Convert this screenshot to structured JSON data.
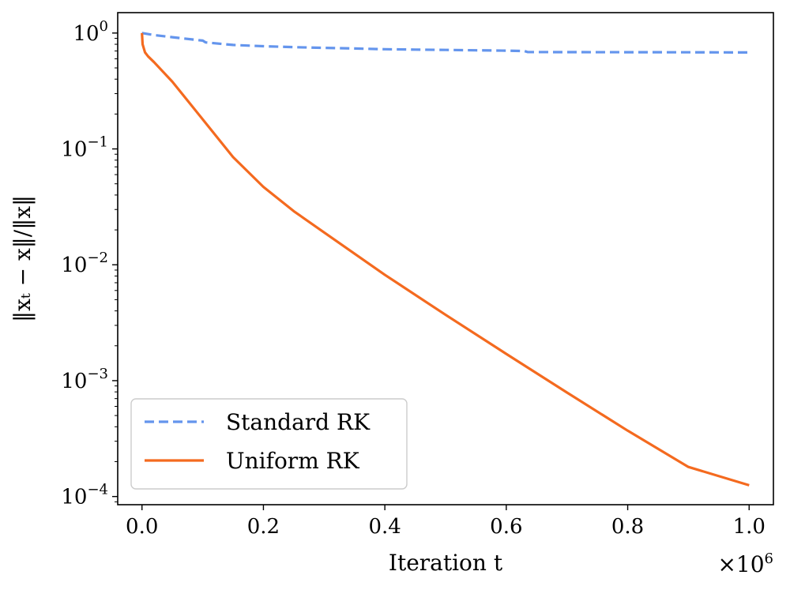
{
  "chart_data": {
    "type": "line",
    "xlabel": "Iteration t",
    "ylabel": "‖xₜ − x‖/‖x‖",
    "x_multiplier": "×10",
    "x_multiplier_exp": "6",
    "xlim": [
      -0.04,
      1.04
    ],
    "ylim": [
      8.5e-05,
      1.5
    ],
    "yscale": "log",
    "grid": false,
    "legend_position": "bottom-left",
    "xticks": [
      {
        "value": 0.0,
        "label": "0.0"
      },
      {
        "value": 0.2,
        "label": "0.2"
      },
      {
        "value": 0.4,
        "label": "0.4"
      },
      {
        "value": 0.6,
        "label": "0.6"
      },
      {
        "value": 0.8,
        "label": "0.8"
      },
      {
        "value": 1.0,
        "label": "1.0"
      }
    ],
    "yticks": [
      {
        "value": 1,
        "base": "10",
        "exp": "0"
      },
      {
        "value": 0.1,
        "base": "10",
        "exp": "−1"
      },
      {
        "value": 0.01,
        "base": "10",
        "exp": "−2"
      },
      {
        "value": 0.001,
        "base": "10",
        "exp": "−3"
      },
      {
        "value": 0.0001,
        "base": "10",
        "exp": "−4"
      }
    ],
    "series": [
      {
        "name": "Standard RK",
        "color": "#6495ED",
        "style": "dashed",
        "x": [
          0.0,
          0.02,
          0.05,
          0.1,
          0.105,
          0.15,
          0.2,
          0.25,
          0.3,
          0.35,
          0.4,
          0.45,
          0.5,
          0.55,
          0.6,
          0.63,
          0.635,
          0.7,
          0.8,
          0.9,
          1.0
        ],
        "y": [
          1.0,
          0.96,
          0.92,
          0.86,
          0.83,
          0.79,
          0.77,
          0.755,
          0.745,
          0.735,
          0.725,
          0.72,
          0.715,
          0.71,
          0.705,
          0.7,
          0.685,
          0.684,
          0.683,
          0.682,
          0.68
        ]
      },
      {
        "name": "Uniform RK",
        "color": "#F46A1F",
        "style": "solid",
        "x": [
          0.0,
          0.001,
          0.005,
          0.01,
          0.02,
          0.05,
          0.1,
          0.15,
          0.2,
          0.25,
          0.3,
          0.4,
          0.5,
          0.6,
          0.7,
          0.8,
          0.9,
          1.0
        ],
        "y": [
          1.0,
          0.8,
          0.68,
          0.63,
          0.56,
          0.38,
          0.18,
          0.085,
          0.047,
          0.029,
          0.019,
          0.0082,
          0.0037,
          0.0017,
          0.00079,
          0.00037,
          0.00018,
          0.000125
        ]
      }
    ]
  }
}
